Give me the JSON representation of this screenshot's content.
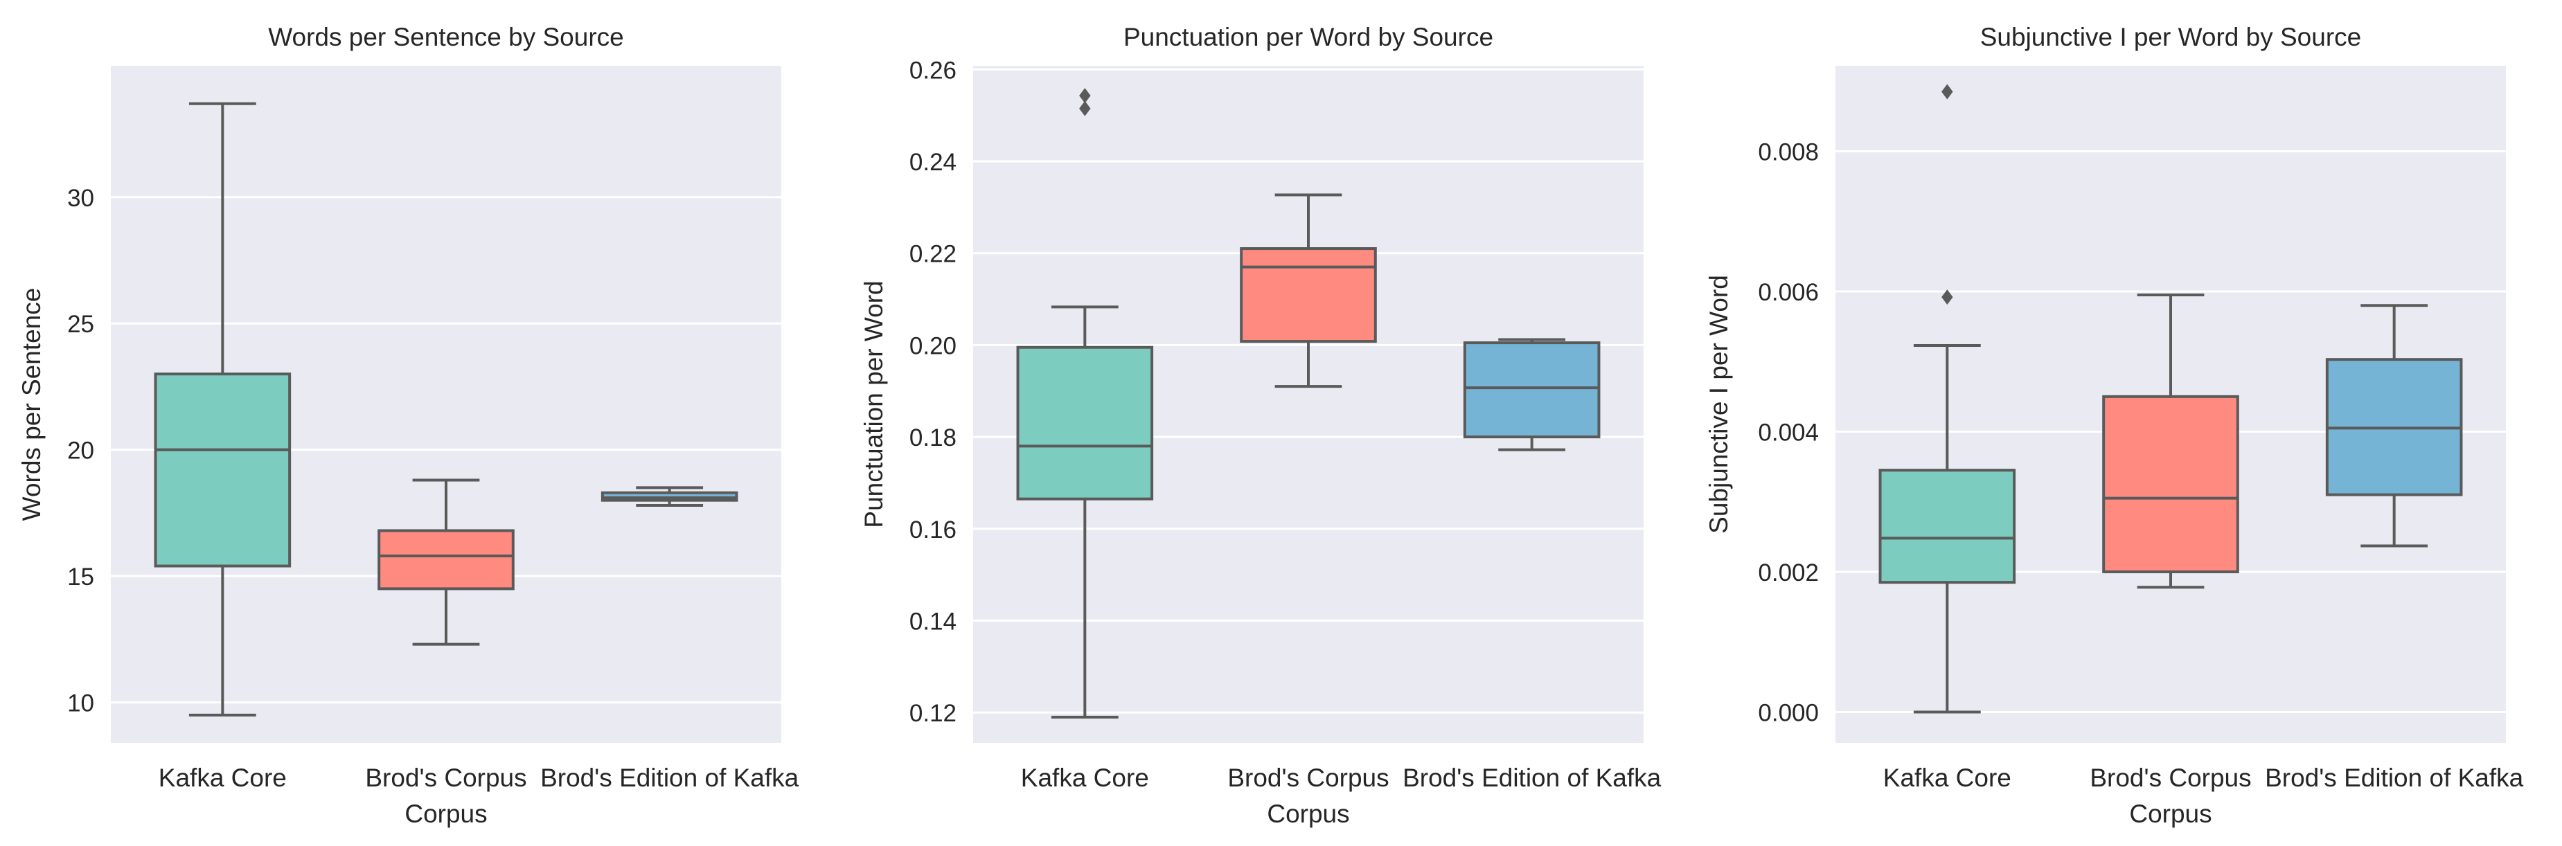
{
  "chart_data": [
    {
      "type": "box",
      "title": "Words per Sentence by Source",
      "xlabel": "Corpus",
      "ylabel": "Words per Sentence",
      "ylim": [
        8.4,
        35.2
      ],
      "yticks": [
        10,
        15,
        20,
        25,
        30
      ],
      "ytick_labels": [
        "10",
        "15",
        "20",
        "25",
        "30"
      ],
      "categories": [
        "Kafka Core",
        "Brod's Corpus",
        "Brod's Edition of Kafka"
      ],
      "colors": [
        "#7ccdc0",
        "#ff8a80",
        "#76b4d6"
      ],
      "boxes": [
        {
          "whisker_low": 9.5,
          "q1": 15.4,
          "median": 20.0,
          "q3": 23.0,
          "whisker_high": 33.7,
          "outliers": []
        },
        {
          "whisker_low": 12.3,
          "q1": 14.5,
          "median": 15.8,
          "q3": 16.8,
          "whisker_high": 18.8,
          "outliers": []
        },
        {
          "whisker_low": 17.8,
          "q1": 18.0,
          "median": 18.1,
          "q3": 18.3,
          "whisker_high": 18.5,
          "outliers": []
        }
      ]
    },
    {
      "type": "box",
      "title": "Punctuation per Word by Source",
      "xlabel": "Corpus",
      "ylabel": "Punctuation per Word",
      "ylim": [
        0.1134,
        0.2608
      ],
      "yticks": [
        0.12,
        0.14,
        0.16,
        0.18,
        0.2,
        0.22,
        0.24,
        0.26
      ],
      "ytick_labels": [
        "0.12",
        "0.14",
        "0.16",
        "0.18",
        "0.20",
        "0.22",
        "0.24",
        "0.26"
      ],
      "categories": [
        "Kafka Core",
        "Brod's Corpus",
        "Brod's Edition of Kafka"
      ],
      "colors": [
        "#7ccdc0",
        "#ff8a80",
        "#76b4d6"
      ],
      "boxes": [
        {
          "whisker_low": 0.119,
          "q1": 0.1665,
          "median": 0.178,
          "q3": 0.1995,
          "whisker_high": 0.2083,
          "outliers": [
            0.2515,
            0.2543
          ]
        },
        {
          "whisker_low": 0.191,
          "q1": 0.2008,
          "median": 0.217,
          "q3": 0.221,
          "whisker_high": 0.2327,
          "outliers": []
        },
        {
          "whisker_low": 0.1772,
          "q1": 0.18,
          "median": 0.1907,
          "q3": 0.2005,
          "whisker_high": 0.2012,
          "outliers": []
        }
      ]
    },
    {
      "type": "box",
      "title": "Subjunctive I per Word by Source",
      "xlabel": "Corpus",
      "ylabel": "Subjunctive I per Word",
      "ylim": [
        -0.00044,
        0.00922
      ],
      "yticks": [
        0.0,
        0.002,
        0.004,
        0.006,
        0.008
      ],
      "ytick_labels": [
        "0.000",
        "0.002",
        "0.004",
        "0.006",
        "0.008"
      ],
      "categories": [
        "Kafka Core",
        "Brod's Corpus",
        "Brod's Edition of Kafka"
      ],
      "colors": [
        "#7ccdc0",
        "#ff8a80",
        "#76b4d6"
      ],
      "boxes": [
        {
          "whisker_low": 0.0,
          "q1": 0.00185,
          "median": 0.00248,
          "q3": 0.00345,
          "whisker_high": 0.00523,
          "outliers": [
            0.00592,
            0.00885
          ]
        },
        {
          "whisker_low": 0.00178,
          "q1": 0.002,
          "median": 0.00305,
          "q3": 0.0045,
          "whisker_high": 0.00595,
          "outliers": []
        },
        {
          "whisker_low": 0.00237,
          "q1": 0.0031,
          "median": 0.00405,
          "q3": 0.00503,
          "whisker_high": 0.0058,
          "outliers": []
        }
      ]
    }
  ]
}
